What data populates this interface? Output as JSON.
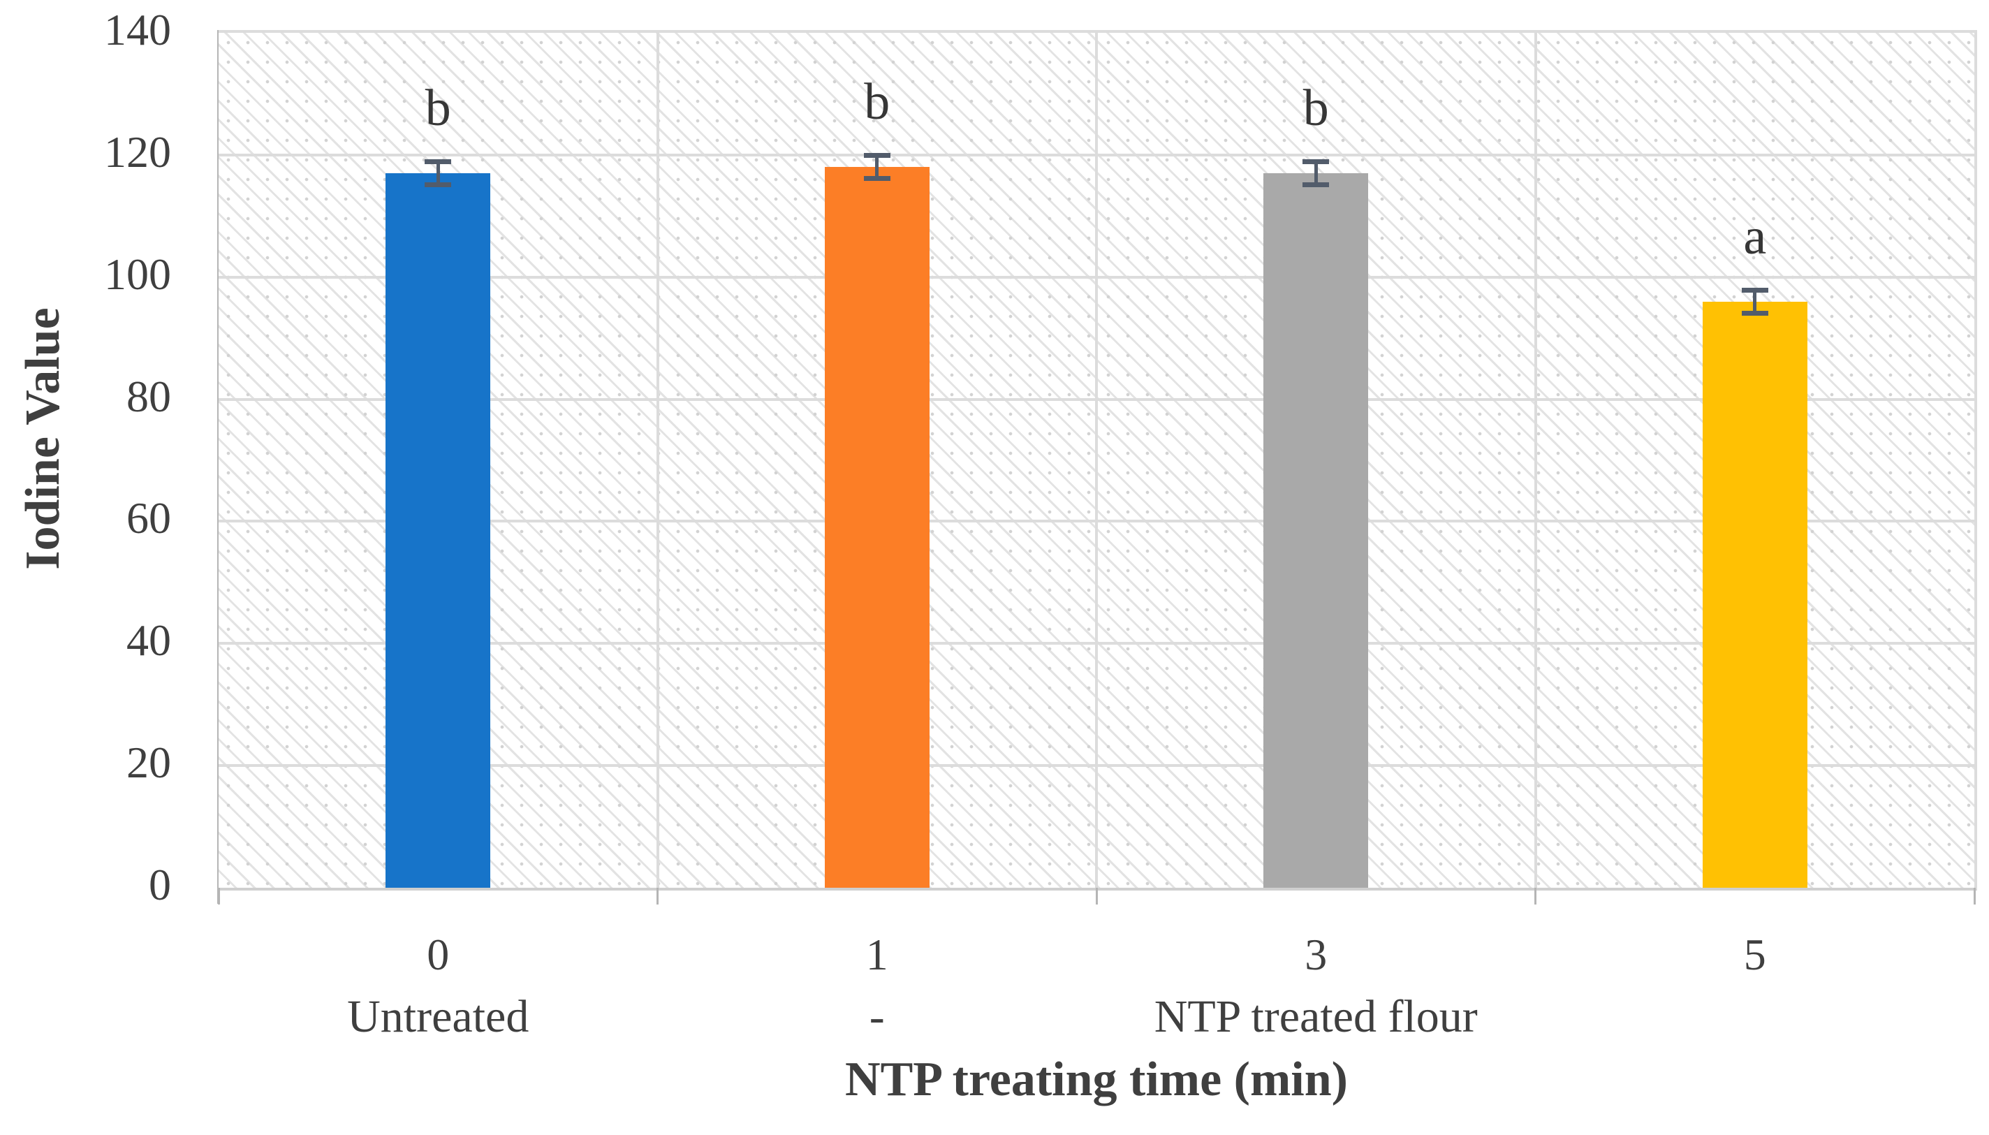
{
  "chart_data": {
    "type": "bar",
    "title": "",
    "ylabel": "Iodine Value",
    "xlabel": "NTP treating time (min)",
    "categories": [
      "0",
      "1",
      "3",
      "5"
    ],
    "category_group_labels": [
      "Untreated",
      "-",
      "NTP treated flour",
      ""
    ],
    "values": [
      117,
      118,
      117,
      96
    ],
    "error_bars": [
      1.5,
      1.5,
      1.5,
      1.5
    ],
    "significance_letters": [
      "b",
      "b",
      "b",
      "a"
    ],
    "bar_colors": [
      "#1774C9",
      "#FC7E26",
      "#A9A9A9",
      "#FFC103"
    ],
    "ylim": [
      0,
      140
    ],
    "ytick_interval": 20,
    "yticks": [
      0,
      20,
      40,
      60,
      80,
      100,
      120,
      140
    ],
    "legend": "none",
    "grid": "light gray horizontal lines every 20 units and vertical lines at category boundaries",
    "plot_background": "white with light gray dotted diagonal hatch pattern"
  },
  "style": {
    "gridline_color": "#DCDCDC",
    "axis_line_color": "#B5B5B5",
    "tick_label_color": "#3F3F3F",
    "error_bar_color": "#525C6B",
    "significance_letter_color": "#363636"
  }
}
